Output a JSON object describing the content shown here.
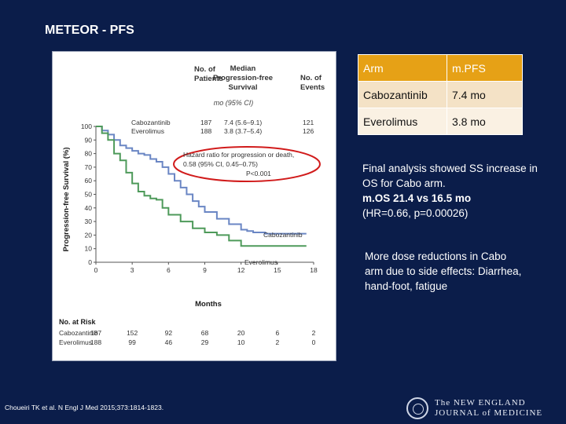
{
  "slide": {
    "title": "METEOR - PFS"
  },
  "figure": {
    "header": {
      "col1": [
        "No. of",
        "Patients"
      ],
      "col2": [
        "Median",
        "Progression-free",
        "Survival"
      ],
      "col3": [
        "No. of",
        "Events"
      ],
      "subhead": "mo (95% CI)"
    },
    "arms": [
      {
        "name": "Cabozantinib",
        "patients": "187",
        "median": "7.4 (5.6–9.1)",
        "events": "121"
      },
      {
        "name": "Everolimus",
        "patients": "188",
        "median": "3.8 (3.7–5.4)",
        "events": "126"
      }
    ],
    "hazard": [
      "Hazard ratio for progression or death,",
      "0.58 (95% CI, 0.45–0.75)",
      "P<0.001"
    ],
    "ylabel": "Progression-free Survival (%)",
    "xlabel": "Months",
    "curve_labels": {
      "cabo": "Cabozantinib",
      "evero": "Everolimus"
    },
    "risk": {
      "title": "No. at Risk",
      "rows": [
        {
          "name": "Cabozantinib",
          "values": [
            "187",
            "152",
            "92",
            "68",
            "20",
            "6",
            "2"
          ]
        },
        {
          "name": "Everolimus",
          "values": [
            "188",
            "99",
            "46",
            "29",
            "10",
            "2",
            "0"
          ]
        }
      ]
    }
  },
  "chart_data": {
    "type": "line",
    "title": "",
    "xlabel": "Months",
    "ylabel": "Progression-free Survival (%)",
    "xlim": [
      0,
      18
    ],
    "ylim": [
      0,
      100
    ],
    "xticks": [
      "0",
      "3",
      "6",
      "9",
      "12",
      "15",
      "18"
    ],
    "yticks": [
      "0",
      "10",
      "20",
      "30",
      "40",
      "50",
      "60",
      "70",
      "80",
      "90",
      "100"
    ],
    "series": [
      {
        "name": "Cabozantinib",
        "color": "#6a86c4",
        "x": [
          0,
          0.5,
          1,
          1.5,
          2,
          2.5,
          3,
          3.5,
          4,
          4.5,
          5,
          5.5,
          6,
          6.5,
          7,
          7.5,
          8,
          8.5,
          9,
          10,
          11,
          12,
          12.5,
          13,
          14,
          15,
          16,
          17
        ],
        "y": [
          100,
          97,
          94,
          90,
          86,
          84,
          82,
          80,
          79,
          76,
          74,
          70,
          65,
          60,
          55,
          50,
          45,
          41,
          37,
          32,
          28,
          24,
          23,
          22,
          21,
          21,
          21,
          21
        ]
      },
      {
        "name": "Everolimus",
        "color": "#4e9a5a",
        "x": [
          0,
          0.5,
          1,
          1.5,
          2,
          2.5,
          3,
          3.5,
          4,
          4.5,
          5,
          5.5,
          6,
          7,
          8,
          9,
          10,
          11,
          12,
          13,
          14,
          15,
          16,
          17
        ],
        "y": [
          100,
          95,
          90,
          80,
          75,
          66,
          58,
          52,
          49,
          47,
          46,
          40,
          35,
          30,
          25,
          22,
          20,
          16,
          12,
          12,
          12,
          12,
          12,
          12
        ]
      }
    ]
  },
  "table": {
    "headers": [
      "Arm",
      "m.PFS"
    ],
    "rows": [
      [
        "Cabozantinib",
        "7.4 mo"
      ],
      [
        "Everolimus",
        "3.8 mo"
      ]
    ]
  },
  "notes": {
    "note1_line1": "Final analysis showed SS increase in OS for Cabo arm.",
    "note1_bold": "m.OS 21.4 vs 16.5 mo",
    "note1_line3": "(HR=0.66, p=0.00026)",
    "note2": "More dose reductions in Cabo arm due to side effects: Diarrhea, hand-foot, fatigue"
  },
  "footer": {
    "citation": "Choueiri TK et al. N Engl J Med 2015;373:1814-1823.",
    "journal_line1": "The NEW ENGLAND",
    "journal_line2": "JOURNAL of MEDICINE"
  }
}
